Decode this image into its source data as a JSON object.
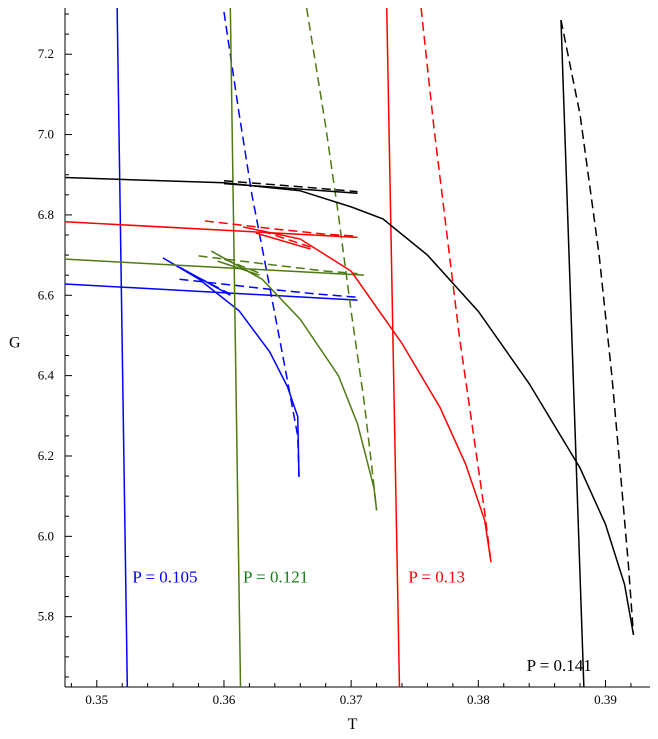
{
  "chart_data": {
    "type": "line",
    "xlabel": "T",
    "ylabel": "G",
    "xlim": [
      0.3475,
      0.3935
    ],
    "ylim": [
      5.625,
      7.315
    ],
    "x_ticks": [
      0.35,
      0.36,
      0.37,
      0.38,
      0.39
    ],
    "x_tick_labels": [
      "0.35",
      "0.36",
      "0.37",
      "0.38",
      "0.39"
    ],
    "y_ticks": [
      5.8,
      6.0,
      6.2,
      6.4,
      6.6,
      6.8,
      7.0,
      7.2
    ],
    "y_tick_labels": [
      "5.8",
      "6.0",
      "6.2",
      "6.4",
      "6.6",
      "6.8",
      "7.0",
      "7.2"
    ],
    "grid": false,
    "series": [
      {
        "name": "P = 0.105",
        "color": "#0000ff",
        "curves": [
          {
            "style": "solid",
            "points": [
              [
                0.3516,
                7.315
              ],
              [
                0.3524,
                5.625
              ]
            ]
          },
          {
            "style": "solid",
            "points": [
              [
                0.3475,
                6.628
              ],
              [
                0.3705,
                6.588
              ]
            ]
          },
          {
            "style": "dashed",
            "points": [
              [
                0.3565,
                6.64
              ],
              [
                0.363,
                6.617
              ],
              [
                0.367,
                6.604
              ],
              [
                0.3705,
                6.595
              ]
            ]
          },
          {
            "style": "solid",
            "points": [
              [
                0.3552,
                6.693
              ],
              [
                0.358,
                6.641
              ],
              [
                0.3612,
                6.561
              ],
              [
                0.3636,
                6.459
              ],
              [
                0.365,
                6.372
              ],
              [
                0.3658,
                6.298
              ],
              [
                0.3659,
                6.148
              ]
            ]
          },
          {
            "style": "dashed",
            "points": [
              [
                0.36,
                7.305
              ],
              [
                0.3612,
                7.05
              ],
              [
                0.3622,
                6.85
              ],
              [
                0.3636,
                6.62
              ],
              [
                0.3648,
                6.42
              ],
              [
                0.3658,
                6.25
              ],
              [
                0.3659,
                6.148
              ]
            ]
          },
          {
            "style": "solid",
            "points": [
              [
                0.3565,
                6.67
              ],
              [
                0.3605,
                6.6
              ]
            ]
          },
          {
            "style": "dashed",
            "points": [
              [
                0.357,
                6.66
              ],
              [
                0.3605,
                6.603
              ]
            ]
          }
        ]
      },
      {
        "name": "P = 0.121",
        "color": "#4f7a12",
        "label_color": "#1a7a1a",
        "curves": [
          {
            "style": "solid",
            "points": [
              [
                0.3605,
                7.315
              ],
              [
                0.3613,
                5.625
              ]
            ]
          },
          {
            "style": "solid",
            "points": [
              [
                0.3475,
                6.69
              ],
              [
                0.371,
                6.65
              ]
            ]
          },
          {
            "style": "dashed",
            "points": [
              [
                0.358,
                6.698
              ],
              [
                0.364,
                6.675
              ],
              [
                0.368,
                6.66
              ],
              [
                0.3705,
                6.654
              ]
            ]
          },
          {
            "style": "solid",
            "points": [
              [
                0.359,
                6.71
              ],
              [
                0.363,
                6.64
              ],
              [
                0.366,
                6.54
              ],
              [
                0.369,
                6.4
              ],
              [
                0.3705,
                6.28
              ],
              [
                0.3718,
                6.12
              ],
              [
                0.372,
                6.065
              ]
            ]
          },
          {
            "style": "dashed",
            "points": [
              [
                0.3665,
                7.315
              ],
              [
                0.368,
                7.02
              ],
              [
                0.369,
                6.8
              ],
              [
                0.37,
                6.56
              ],
              [
                0.371,
                6.34
              ],
              [
                0.3716,
                6.18
              ],
              [
                0.372,
                6.065
              ]
            ]
          },
          {
            "style": "solid",
            "points": [
              [
                0.3595,
                6.685
              ],
              [
                0.3628,
                6.65
              ]
            ]
          },
          {
            "style": "dashed",
            "points": [
              [
                0.36,
                6.69
              ],
              [
                0.3628,
                6.655
              ]
            ]
          }
        ]
      },
      {
        "name": "P = 0.13",
        "color": "#ff0000",
        "curves": [
          {
            "style": "solid",
            "points": [
              [
                0.3728,
                7.315
              ],
              [
                0.3738,
                5.625
              ]
            ]
          },
          {
            "style": "solid",
            "points": [
              [
                0.3475,
                6.783
              ],
              [
                0.3705,
                6.744
              ]
            ]
          },
          {
            "style": "dashed",
            "points": [
              [
                0.3585,
                6.785
              ],
              [
                0.364,
                6.765
              ],
              [
                0.368,
                6.752
              ],
              [
                0.3705,
                6.747
              ]
            ]
          },
          {
            "style": "solid",
            "points": [
              [
                0.3615,
                6.77
              ],
              [
                0.366,
                6.74
              ],
              [
                0.37,
                6.66
              ],
              [
                0.374,
                6.48
              ],
              [
                0.377,
                6.32
              ],
              [
                0.379,
                6.18
              ],
              [
                0.3805,
                6.04
              ],
              [
                0.381,
                5.935
              ]
            ]
          },
          {
            "style": "dashed",
            "points": [
              [
                0.3755,
                7.315
              ],
              [
                0.3765,
                7.02
              ],
              [
                0.3775,
                6.76
              ],
              [
                0.3785,
                6.5
              ],
              [
                0.3795,
                6.28
              ],
              [
                0.3805,
                6.06
              ],
              [
                0.381,
                5.935
              ]
            ]
          },
          {
            "style": "solid",
            "points": [
              [
                0.3625,
                6.755
              ],
              [
                0.3668,
                6.715
              ]
            ]
          },
          {
            "style": "dashed",
            "points": [
              [
                0.363,
                6.76
              ],
              [
                0.3668,
                6.72
              ]
            ]
          }
        ]
      },
      {
        "name": "P = 0.141",
        "color": "#000000",
        "curves": [
          {
            "style": "solid",
            "points": [
              [
                0.3865,
                7.285
              ],
              [
                0.3883,
                5.625
              ]
            ]
          },
          {
            "style": "solid",
            "points": [
              [
                0.3475,
                6.893
              ],
              [
                0.36,
                6.88
              ],
              [
                0.366,
                6.86
              ],
              [
                0.37,
                6.82
              ],
              [
                0.3725,
                6.79
              ],
              [
                0.376,
                6.7
              ],
              [
                0.38,
                6.56
              ],
              [
                0.384,
                6.38
              ],
              [
                0.388,
                6.17
              ],
              [
                0.39,
                6.03
              ],
              [
                0.3915,
                5.88
              ],
              [
                0.3922,
                5.755
              ]
            ]
          },
          {
            "style": "dashed",
            "points": [
              [
                0.3865,
                7.285
              ],
              [
                0.388,
                7.05
              ],
              [
                0.3895,
                6.7
              ],
              [
                0.3905,
                6.4
              ],
              [
                0.3912,
                6.15
              ],
              [
                0.3918,
                5.93
              ],
              [
                0.3922,
                5.755
              ]
            ]
          },
          {
            "style": "solid",
            "points": [
              [
                0.36,
                6.878
              ],
              [
                0.3705,
                6.854
              ]
            ]
          },
          {
            "style": "dashed",
            "points": [
              [
                0.36,
                6.885
              ],
              [
                0.366,
                6.87
              ],
              [
                0.3705,
                6.858
              ]
            ]
          }
        ]
      }
    ],
    "annotations": [
      {
        "text": "P = 0.105",
        "x": 0.3528,
        "y": 5.885,
        "color": "#0000ff"
      },
      {
        "text": "P = 0.121",
        "x": 0.3615,
        "y": 5.885,
        "color": "#1a7a1a"
      },
      {
        "text": "P = 0.13",
        "x": 0.3745,
        "y": 5.885,
        "color": "#ff0000"
      },
      {
        "text": "P = 0.141",
        "x": 0.3838,
        "y": 5.665,
        "color": "#000000"
      }
    ]
  }
}
